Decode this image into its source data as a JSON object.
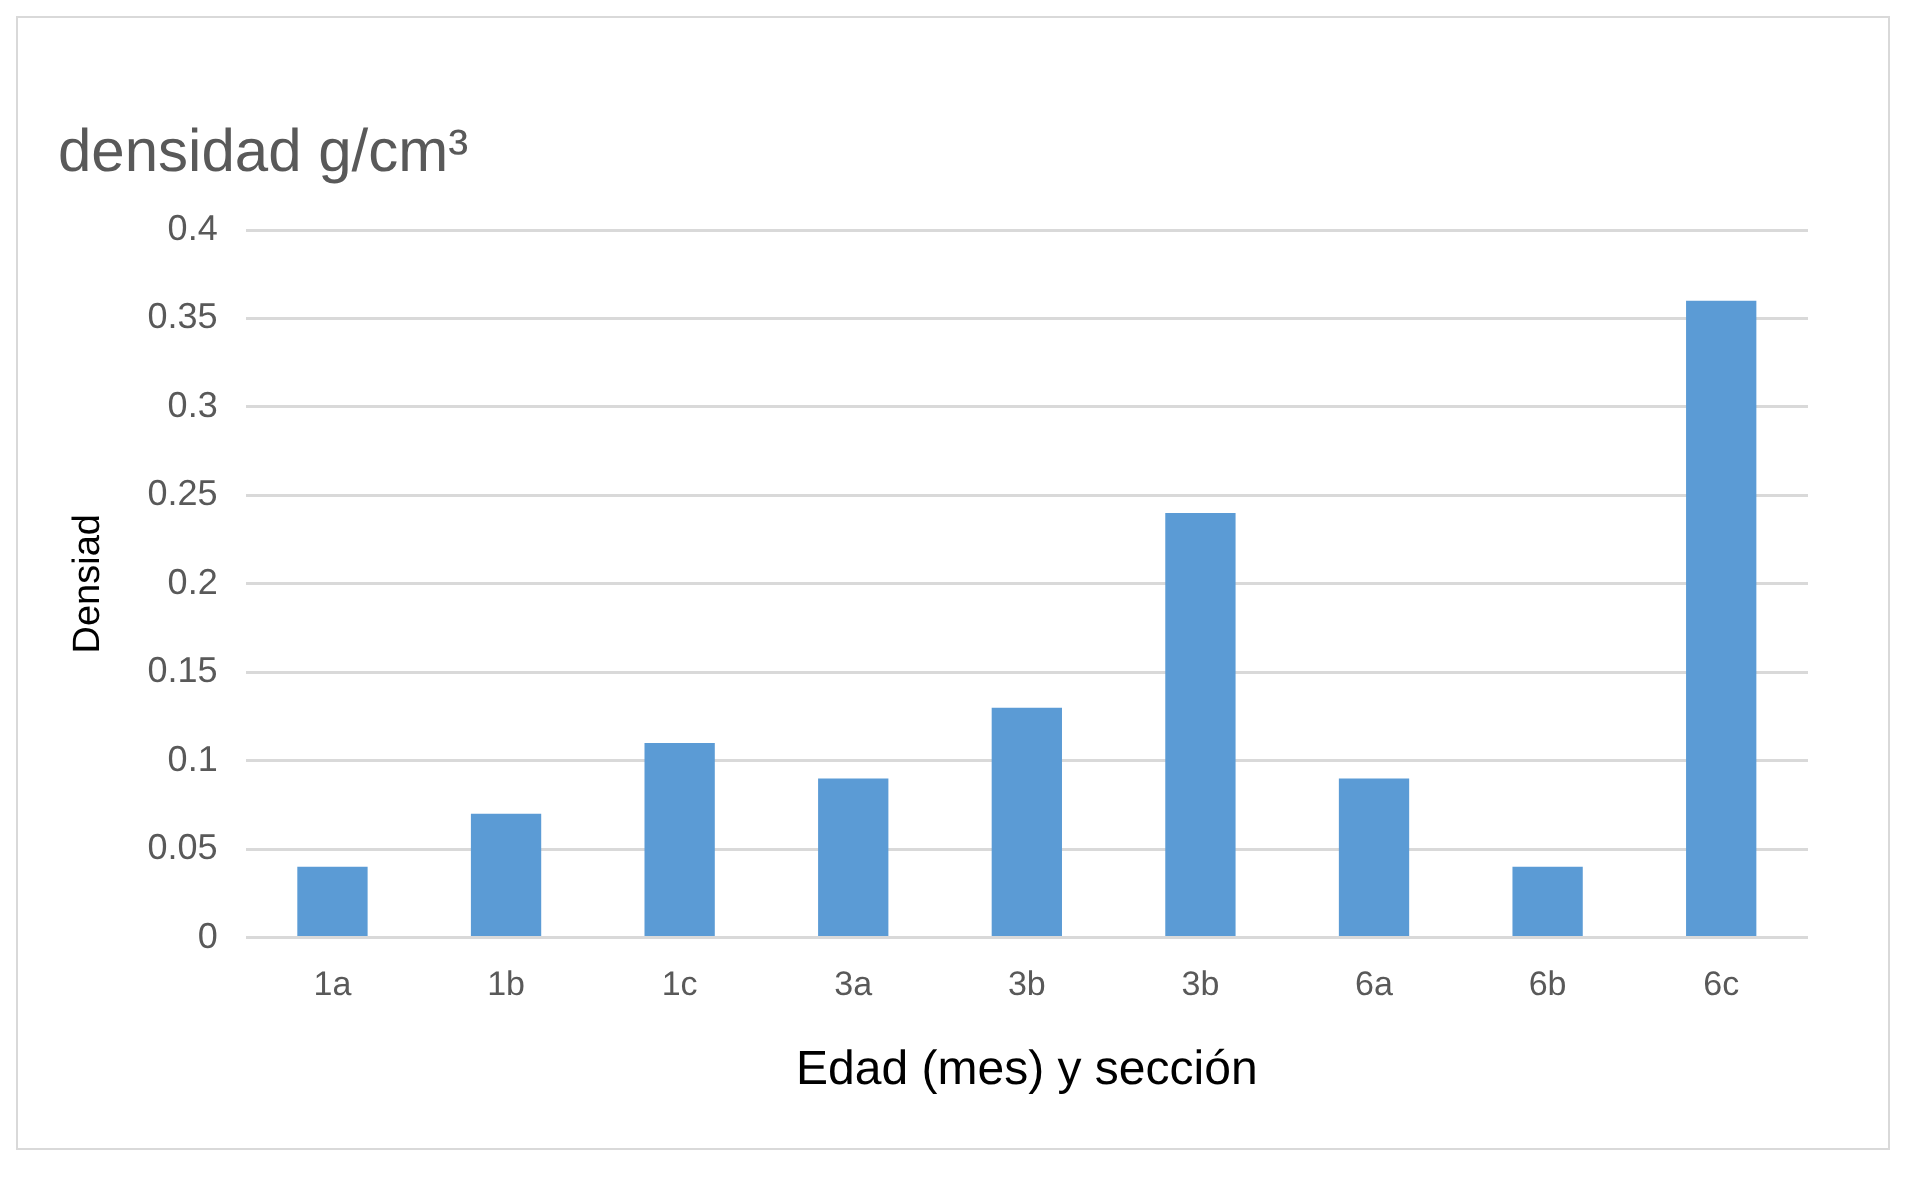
{
  "chart_data": {
    "type": "bar",
    "title": "densidad g/cm³",
    "xlabel": "Edad (mes) y sección",
    "ylabel": "Densiad",
    "categories": [
      "1a",
      "1b",
      "1c",
      "3a",
      "3b",
      "3b",
      "6a",
      "6b",
      "6c"
    ],
    "values": [
      0.04,
      0.07,
      0.11,
      0.09,
      0.13,
      0.24,
      0.09,
      0.04,
      0.36
    ],
    "color": "#5b9bd5",
    "ylim": [
      0,
      0.4
    ],
    "yticks": [
      0,
      0.05,
      0.1,
      0.15,
      0.2,
      0.25,
      0.3,
      0.35,
      0.4
    ],
    "grid": "y"
  }
}
